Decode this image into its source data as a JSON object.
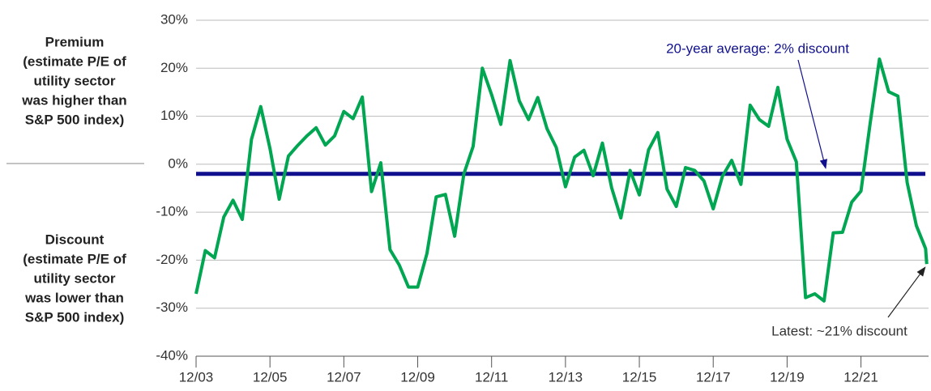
{
  "chart_data": {
    "type": "line",
    "x": [
      2003.92,
      2004.17,
      2004.42,
      2004.67,
      2004.92,
      2005.17,
      2005.42,
      2005.67,
      2005.92,
      2006.17,
      2006.42,
      2006.67,
      2006.92,
      2007.17,
      2007.42,
      2007.67,
      2007.92,
      2008.17,
      2008.42,
      2008.67,
      2008.92,
      2009.17,
      2009.42,
      2009.67,
      2009.92,
      2010.17,
      2010.42,
      2010.67,
      2010.92,
      2011.17,
      2011.42,
      2011.67,
      2011.92,
      2012.17,
      2012.42,
      2012.67,
      2012.92,
      2013.17,
      2013.42,
      2013.67,
      2013.92,
      2014.17,
      2014.42,
      2014.67,
      2014.92,
      2015.17,
      2015.42,
      2015.67,
      2015.92,
      2016.17,
      2016.42,
      2016.67,
      2016.92,
      2017.17,
      2017.42,
      2017.67,
      2017.92,
      2018.17,
      2018.42,
      2018.67,
      2018.92,
      2019.17,
      2019.42,
      2019.67,
      2019.92,
      2020.17,
      2020.42,
      2020.67,
      2020.92,
      2021.17,
      2021.42,
      2021.67,
      2021.92,
      2022.17,
      2022.42,
      2022.67,
      2022.92,
      2023.17,
      2023.42,
      2023.67,
      2023.7
    ],
    "series": [
      {
        "color": "#00a651",
        "values": [
          -27,
          -18,
          -19.5,
          -11,
          -7.5,
          -11.5,
          5.2,
          12,
          3.3,
          -7.3,
          1.7,
          3.9,
          5.9,
          7.6,
          4,
          5.9,
          11,
          9.5,
          14,
          -5.7,
          0.3,
          -17.8,
          -21,
          -25.6,
          -25.6,
          -18.6,
          -6.8,
          -6.3,
          -15,
          -2,
          3.7,
          20,
          14.5,
          8.3,
          21.6,
          13.2,
          9.3,
          13.9,
          7.4,
          3.5,
          -4.7,
          1.5,
          2.9,
          -2.4,
          4.4,
          -4.9,
          -11.2,
          -1.3,
          -6.4,
          3,
          6.6,
          -5.2,
          -8.8,
          -0.7,
          -1.3,
          -3.5,
          -9.3,
          -2.5,
          0.8,
          -4.2,
          12.3,
          9.3,
          7.9,
          16,
          5.2,
          0.5,
          -27.8,
          -27,
          -28.5,
          -14.3,
          -14.2,
          -7.9,
          -5.6,
          8.6,
          21.9,
          15.1,
          14.2,
          -3.8,
          -12.8,
          -17.6,
          -20.8
        ]
      }
    ],
    "xlim": [
      2003.92,
      2023.75
    ],
    "xticks": [
      {
        "value": 2003.92,
        "label": "12/03"
      },
      {
        "value": 2005.92,
        "label": "12/05"
      },
      {
        "value": 2007.92,
        "label": "12/07"
      },
      {
        "value": 2009.92,
        "label": "12/09"
      },
      {
        "value": 2011.92,
        "label": "12/11"
      },
      {
        "value": 2013.92,
        "label": "12/13"
      },
      {
        "value": 2015.92,
        "label": "12/15"
      },
      {
        "value": 2017.92,
        "label": "12/17"
      },
      {
        "value": 2019.92,
        "label": "12/19"
      },
      {
        "value": 2021.92,
        "label": "12/21"
      }
    ],
    "ylim": [
      -40,
      30
    ],
    "yticks": [
      {
        "value": -40,
        "label": "-40%"
      },
      {
        "value": -30,
        "label": "-30%"
      },
      {
        "value": -20,
        "label": "-20%"
      },
      {
        "value": -10,
        "label": "-10%"
      },
      {
        "value": 0,
        "label": "0%"
      },
      {
        "value": 10,
        "label": "10%"
      },
      {
        "value": 20,
        "label": "20%"
      },
      {
        "value": 30,
        "label": "30%"
      }
    ],
    "grid": true,
    "reference_line": {
      "value": -2,
      "label": "20-year average: 2% discount",
      "color": "#10108f"
    },
    "latest_annotation": "Latest: ~21% discount",
    "side_labels": {
      "premium": [
        "Premium",
        "(estimate P/E of",
        "utility sector",
        "was higher than",
        "S&P 500 index)"
      ],
      "discount": [
        "Discount",
        "(estimate P/E of",
        "utility sector",
        "was lower than",
        "S&P 500 index)"
      ]
    }
  }
}
